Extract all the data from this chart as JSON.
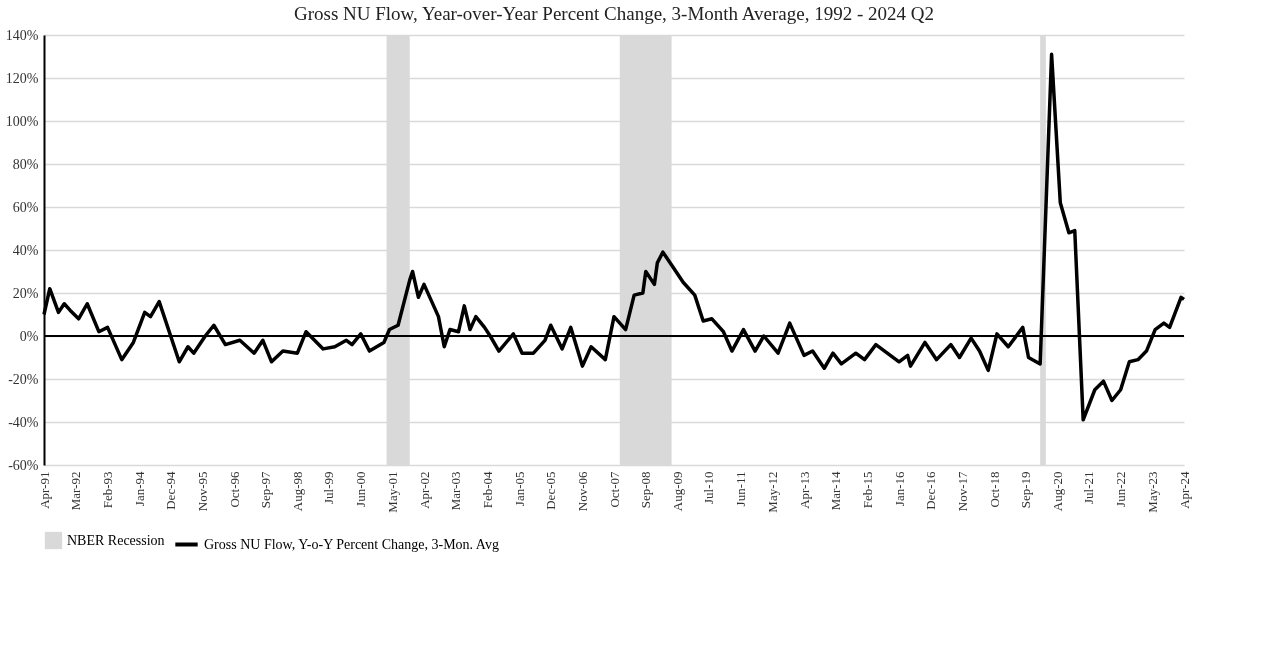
{
  "chart_data": {
    "type": "line",
    "title": "Gross NU Flow, Year-over-Year Percent Change, 3-Month Average, 1992 - 2024 Q2",
    "x": [
      "1991-04",
      "1991-06",
      "1991-09",
      "1991-11",
      "1992-01",
      "1992-04",
      "1992-07",
      "1992-11",
      "1993-02",
      "1993-07",
      "1993-11",
      "1994-03",
      "1994-05",
      "1994-08",
      "1995-03",
      "1995-06",
      "1995-08",
      "1995-12",
      "1996-03",
      "1996-07",
      "1996-12",
      "1997-05",
      "1997-08",
      "1997-11",
      "1998-03",
      "1998-08",
      "1998-11",
      "1999-05",
      "1999-09",
      "2000-01",
      "2000-03",
      "2000-06",
      "2000-09",
      "2001-02",
      "2001-04",
      "2001-07",
      "2001-11",
      "2001-12",
      "2002-02",
      "2002-04",
      "2002-09",
      "2002-11",
      "2003-01",
      "2003-04",
      "2003-06",
      "2003-08",
      "2003-10",
      "2004-01",
      "2004-03",
      "2004-06",
      "2004-11",
      "2005-02",
      "2005-06",
      "2005-10",
      "2005-12",
      "2006-04",
      "2006-07",
      "2006-11",
      "2007-02",
      "2007-07",
      "2007-10",
      "2008-02",
      "2008-05",
      "2008-08",
      "2008-09",
      "2008-12",
      "2009-01",
      "2009-03",
      "2009-06",
      "2009-10",
      "2010-02",
      "2010-05",
      "2010-08",
      "2010-12",
      "2011-03",
      "2011-07",
      "2011-11",
      "2012-02",
      "2012-07",
      "2012-11",
      "2013-04",
      "2013-07",
      "2013-11",
      "2014-02",
      "2014-05",
      "2014-10",
      "2015-01",
      "2015-05",
      "2016-01",
      "2016-04",
      "2016-05",
      "2016-10",
      "2017-02",
      "2017-07",
      "2017-10",
      "2018-02",
      "2018-05",
      "2018-08",
      "2018-11",
      "2019-03",
      "2019-08",
      "2019-10",
      "2020-02",
      "2020-06",
      "2020-09",
      "2020-12",
      "2021-02",
      "2021-05",
      "2021-09",
      "2021-12",
      "2022-03",
      "2022-06",
      "2022-09",
      "2022-12",
      "2023-03",
      "2023-06",
      "2023-09",
      "2023-11",
      "2024-03",
      "2024-04"
    ],
    "series": [
      {
        "name": "Gross NU Flow, Y-o-Y Percent Change, 3-Mon. Avg",
        "color": "#000000",
        "values": [
          10,
          22,
          11,
          15,
          12,
          8,
          15,
          2,
          4,
          -11,
          -3,
          11,
          9,
          16,
          -12,
          -5,
          -8,
          0,
          5,
          -4,
          -2,
          -8,
          -2,
          -12,
          -7,
          -8,
          2,
          -6,
          -5,
          -2,
          -4,
          1,
          -7,
          -3,
          3,
          5,
          26,
          30,
          18,
          24,
          9,
          -5,
          3,
          2,
          14,
          3,
          9,
          4,
          0,
          -7,
          1,
          -8,
          -8,
          -2,
          5,
          -6,
          4,
          -14,
          -5,
          -11,
          9,
          3,
          19,
          20,
          30,
          24,
          34,
          39,
          33,
          25,
          19,
          7,
          8,
          2,
          -7,
          3,
          -7,
          0,
          -8,
          6,
          -9,
          -7,
          -15,
          -8,
          -13,
          -8,
          -11,
          -4,
          -12,
          -9,
          -14,
          -3,
          -11,
          -4,
          -10,
          -1,
          -7,
          -16,
          1,
          -5,
          4,
          -10,
          -13,
          131,
          62,
          48,
          49,
          -39,
          -25,
          -21,
          -30,
          -25,
          -12,
          -11,
          -7,
          3,
          6,
          4,
          18,
          17
        ]
      }
    ],
    "xlim": [
      "1991-04",
      "2024-04"
    ],
    "xticks": [
      {
        "value": "1991-04",
        "label": "Apr-91"
      },
      {
        "value": "1992-03",
        "label": "Mar-92"
      },
      {
        "value": "1993-02",
        "label": "Feb-93"
      },
      {
        "value": "1994-01",
        "label": "Jan-94"
      },
      {
        "value": "1994-12",
        "label": "Dec-94"
      },
      {
        "value": "1995-11",
        "label": "Nov-95"
      },
      {
        "value": "1996-10",
        "label": "Oct-96"
      },
      {
        "value": "1997-09",
        "label": "Sep-97"
      },
      {
        "value": "1998-08",
        "label": "Aug-98"
      },
      {
        "value": "1999-07",
        "label": "Jul-99"
      },
      {
        "value": "2000-06",
        "label": "Jun-00"
      },
      {
        "value": "2001-05",
        "label": "May-01"
      },
      {
        "value": "2002-04",
        "label": "Apr-02"
      },
      {
        "value": "2003-03",
        "label": "Mar-03"
      },
      {
        "value": "2004-02",
        "label": "Feb-04"
      },
      {
        "value": "2005-01",
        "label": "Jan-05"
      },
      {
        "value": "2005-12",
        "label": "Dec-05"
      },
      {
        "value": "2006-11",
        "label": "Nov-06"
      },
      {
        "value": "2007-10",
        "label": "Oct-07"
      },
      {
        "value": "2008-09",
        "label": "Sep-08"
      },
      {
        "value": "2009-08",
        "label": "Aug-09"
      },
      {
        "value": "2010-07",
        "label": "Jul-10"
      },
      {
        "value": "2011-06",
        "label": "Jun-11"
      },
      {
        "value": "2012-05",
        "label": "May-12"
      },
      {
        "value": "2013-04",
        "label": "Apr-13"
      },
      {
        "value": "2014-03",
        "label": "Mar-14"
      },
      {
        "value": "2015-02",
        "label": "Feb-15"
      },
      {
        "value": "2016-01",
        "label": "Jan-16"
      },
      {
        "value": "2016-12",
        "label": "Dec-16"
      },
      {
        "value": "2017-11",
        "label": "Nov-17"
      },
      {
        "value": "2018-10",
        "label": "Oct-18"
      },
      {
        "value": "2019-09",
        "label": "Sep-19"
      },
      {
        "value": "2020-08",
        "label": "Aug-20"
      },
      {
        "value": "2021-07",
        "label": "Jul-21"
      },
      {
        "value": "2022-06",
        "label": "Jun-22"
      },
      {
        "value": "2023-05",
        "label": "May-23"
      },
      {
        "value": "2024-04",
        "label": "Apr-24"
      }
    ],
    "ylim": [
      -60,
      140
    ],
    "yticks": [
      {
        "value": -60,
        "label": "-60%"
      },
      {
        "value": -40,
        "label": "-40%"
      },
      {
        "value": -20,
        "label": "-20%"
      },
      {
        "value": 0,
        "label": "0%"
      },
      {
        "value": 20,
        "label": "20%"
      },
      {
        "value": 40,
        "label": "40%"
      },
      {
        "value": 60,
        "label": "60%"
      },
      {
        "value": 80,
        "label": "80%"
      },
      {
        "value": 100,
        "label": "100%"
      },
      {
        "value": 120,
        "label": "120%"
      },
      {
        "value": 140,
        "label": "140%"
      }
    ],
    "bands": [
      {
        "axis": "x",
        "from": "2001-03",
        "to": "2001-11",
        "label": "NBER Recession",
        "color": "#d9d9d9"
      },
      {
        "axis": "x",
        "from": "2007-12",
        "to": "2009-06",
        "color": "#d9d9d9"
      },
      {
        "axis": "x",
        "from": "2020-02",
        "to": "2020-04",
        "color": "#d9d9d9"
      }
    ],
    "ref_lines": [
      {
        "axis": "y",
        "value": 0,
        "color": "#000000"
      }
    ],
    "grid": "y",
    "legend": "bottom"
  }
}
